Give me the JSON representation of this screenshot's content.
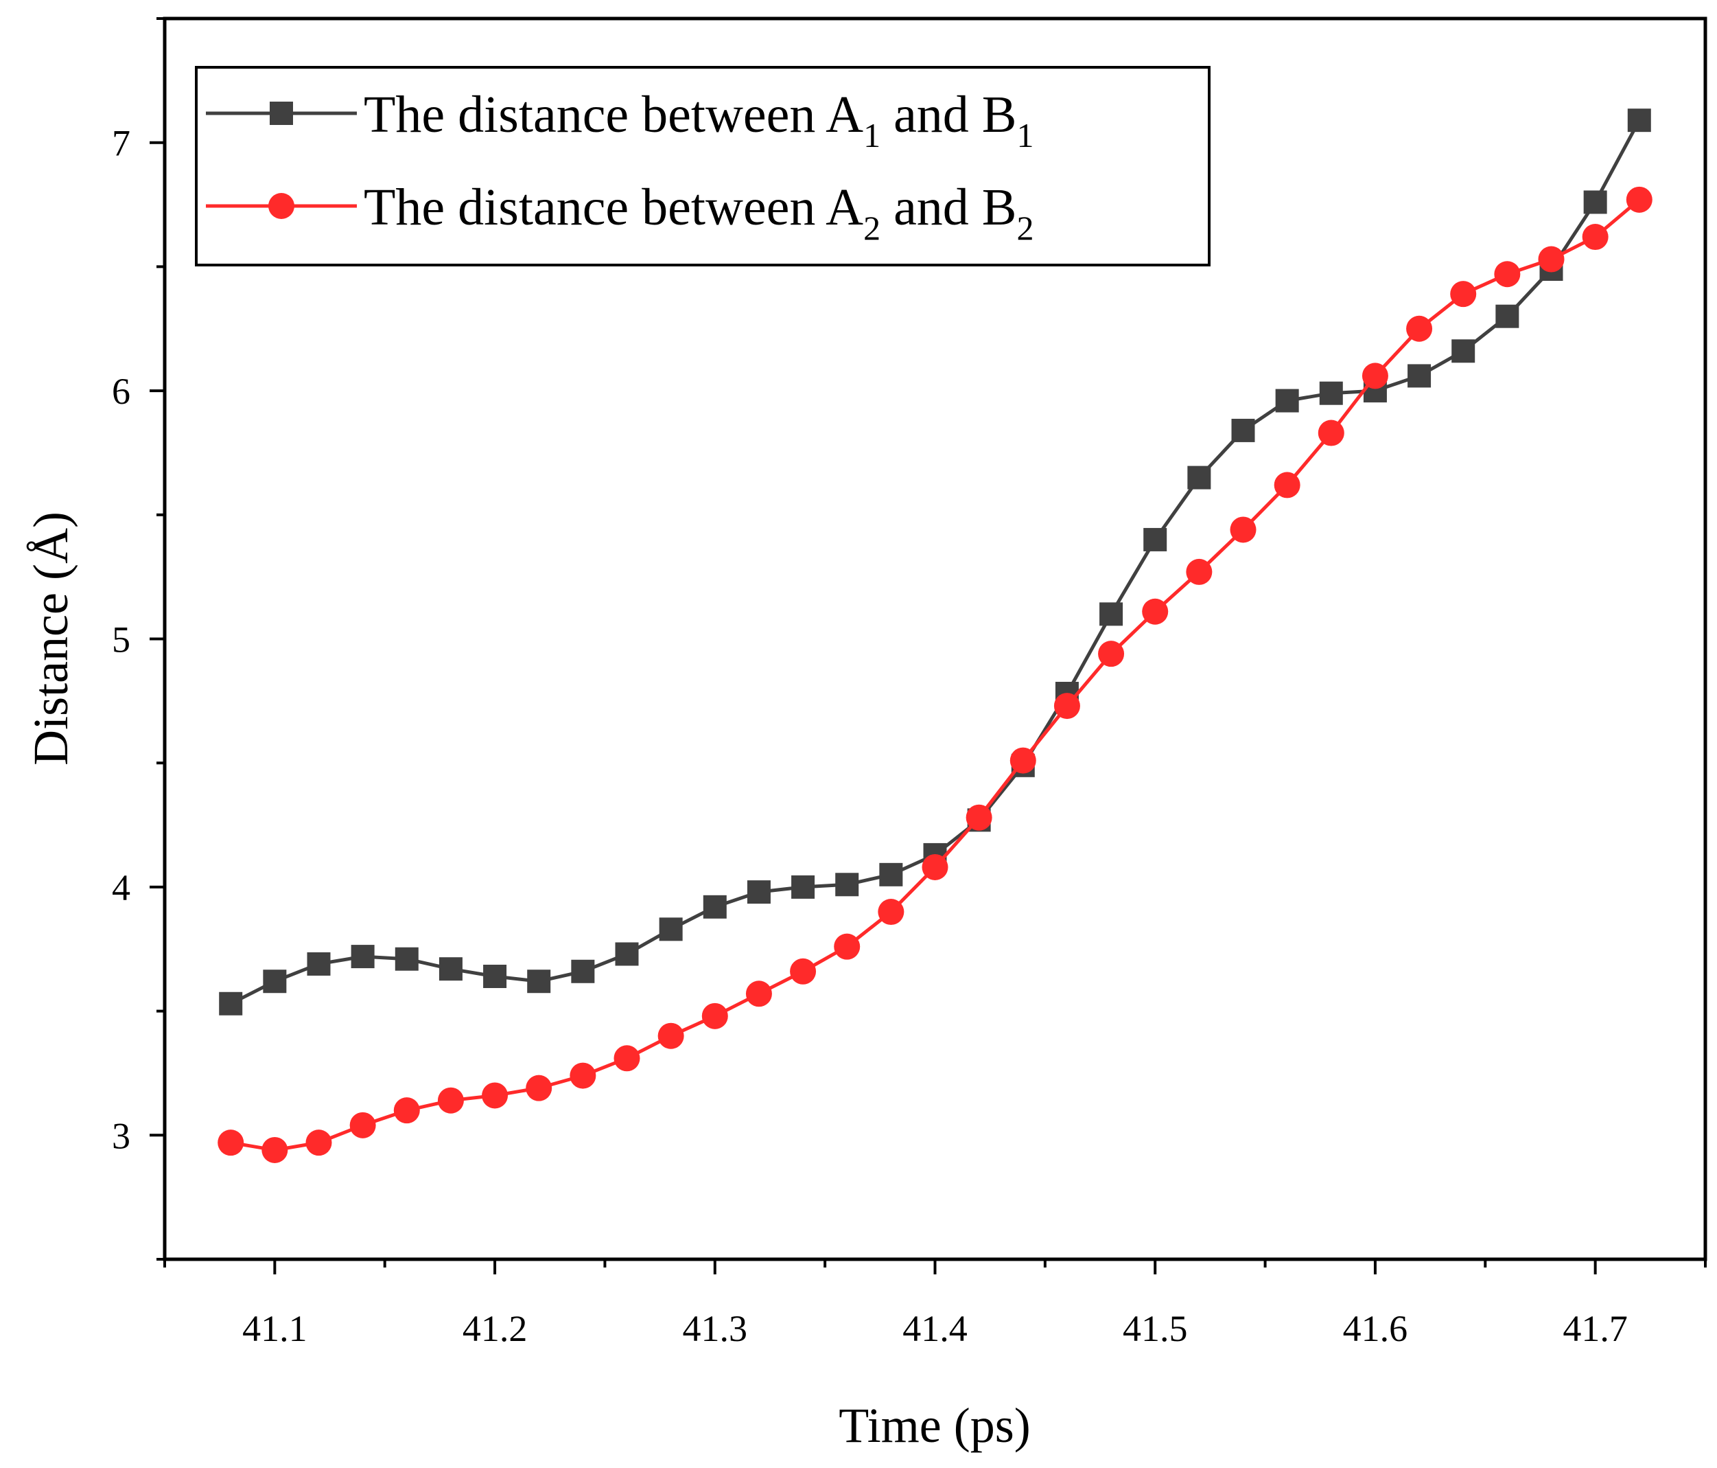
{
  "chart_data": {
    "type": "line",
    "title": "",
    "xlabel": "Time (ps)",
    "ylabel": "Distance (Å)",
    "xlim": [
      41.05,
      41.75
    ],
    "ylim": [
      2.5,
      7.5
    ],
    "xticks": [
      "41.1",
      "41.2",
      "41.3",
      "41.4",
      "41.5",
      "41.6",
      "41.7"
    ],
    "yticks": [
      "3",
      "4",
      "5",
      "6",
      "7"
    ],
    "x": [
      41.08,
      41.1,
      41.12,
      41.14,
      41.16,
      41.18,
      41.2,
      41.22,
      41.24,
      41.26,
      41.28,
      41.3,
      41.32,
      41.34,
      41.36,
      41.38,
      41.4,
      41.42,
      41.44,
      41.46,
      41.48,
      41.5,
      41.52,
      41.54,
      41.56,
      41.58,
      41.6,
      41.62,
      41.64,
      41.66,
      41.68,
      41.7,
      41.72
    ],
    "series": [
      {
        "name": "The distance between A1 and B1",
        "label_parts": [
          "The distance between A",
          "1",
          " and B",
          "1"
        ],
        "marker": "square",
        "color": "#404040",
        "values": [
          3.53,
          3.62,
          3.69,
          3.72,
          3.71,
          3.67,
          3.64,
          3.62,
          3.66,
          3.73,
          3.83,
          3.92,
          3.98,
          4.0,
          4.01,
          4.05,
          4.13,
          4.27,
          4.49,
          4.78,
          5.1,
          5.4,
          5.65,
          5.84,
          5.96,
          5.99,
          6.0,
          6.06,
          6.16,
          6.3,
          6.49,
          6.76,
          7.09
        ]
      },
      {
        "name": "The distance between A2 and B2",
        "label_parts": [
          "The distance between A",
          "2",
          " and B",
          "2"
        ],
        "marker": "circle",
        "color": "#ff2a2a",
        "values": [
          2.97,
          2.94,
          2.97,
          3.04,
          3.1,
          3.14,
          3.16,
          3.19,
          3.24,
          3.31,
          3.4,
          3.48,
          3.57,
          3.66,
          3.76,
          3.9,
          4.08,
          4.28,
          4.51,
          4.73,
          4.94,
          5.11,
          5.27,
          5.44,
          5.62,
          5.83,
          6.06,
          6.25,
          6.39,
          6.47,
          6.53,
          6.62,
          6.77
        ]
      }
    ],
    "legend_position": "top-left",
    "grid": false
  }
}
